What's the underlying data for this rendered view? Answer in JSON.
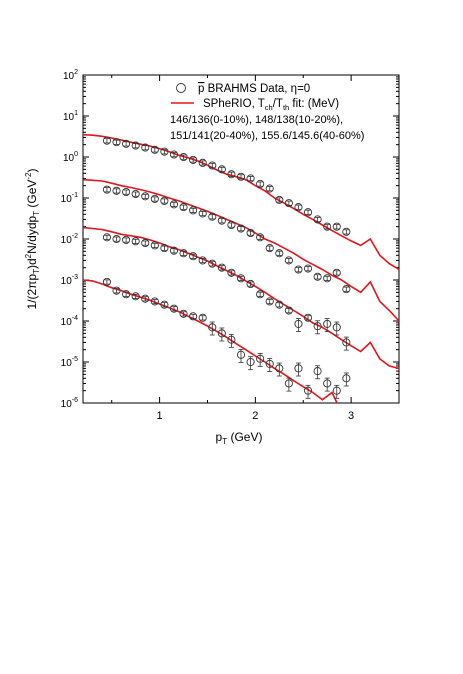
{
  "chart_data": {
    "type": "scatter",
    "title": "",
    "xlabel_main": "p",
    "xlabel_sub": "T",
    "xlabel_unit": " (GeV)",
    "ylabel": "1/(2πp_T)d²N/dydp_T (GeV⁻²)",
    "ylabel_parts": {
      "prefix": "1/(2πp",
      "sub1": "T",
      "mid": ")d",
      "sup1": "2",
      "mid2": "N/dydp",
      "sub2": "T",
      "unit": " (GeV",
      "sup2": "-2",
      "close": ")"
    },
    "xlim": [
      0.2,
      3.5
    ],
    "ylim_log10": [
      -6,
      2
    ],
    "yscale": "log",
    "xticks": [
      {
        "value": 1,
        "label": "1"
      },
      {
        "value": 2,
        "label": "2"
      },
      {
        "value": 3,
        "label": "3"
      }
    ],
    "yticks": [
      {
        "exp": 2,
        "base": "10",
        "sup": "2"
      },
      {
        "exp": 1,
        "base": "10",
        "sup": "1"
      },
      {
        "exp": 0,
        "base": "10",
        "sup": "0"
      },
      {
        "exp": -1,
        "base": "10",
        "sup": "-1"
      },
      {
        "exp": -2,
        "base": "10",
        "sup": "-2"
      },
      {
        "exp": -3,
        "base": "10",
        "sup": "-3"
      },
      {
        "exp": -4,
        "base": "10",
        "sup": "-4"
      },
      {
        "exp": -5,
        "base": "10",
        "sup": "-5"
      },
      {
        "exp": -6,
        "base": "10",
        "sup": "-6"
      }
    ],
    "legend": {
      "placement": "top-right",
      "data_label_bar": "p",
      "data_label_rest": " BRAHMS Data, η=0",
      "model_label_pre": "SPheRIO, T",
      "model_label_sub1": "ch",
      "model_label_mid": "/T",
      "model_label_sub2": "th",
      "model_label_post": " fit: (MeV)",
      "fit_line1": "146/136(0-10%), 148/138(10-20%),",
      "fit_line2": "151/141(20-40%), 155.6/145.6(40-60%)"
    },
    "colors": {
      "model": "#e8141c",
      "data": "#333333"
    },
    "series": [
      {
        "data_x": [
          0.45,
          0.55,
          0.65,
          0.75,
          0.85,
          0.95,
          1.05,
          1.15,
          1.25,
          1.35,
          1.45,
          1.55,
          1.65,
          1.75,
          1.85,
          1.95,
          2.05,
          2.15,
          2.25,
          2.35,
          2.45,
          2.55,
          2.65,
          2.75,
          2.85,
          2.95
        ],
        "data_y": [
          2.5,
          2.3,
          2.1,
          1.9,
          1.7,
          1.5,
          1.35,
          1.15,
          1.0,
          0.85,
          0.72,
          0.62,
          0.5,
          0.38,
          0.33,
          0.3,
          0.22,
          0.17,
          0.09,
          0.075,
          0.06,
          0.045,
          0.03,
          0.02,
          0.02,
          0.015
        ],
        "model_x": [
          0.2,
          0.3,
          0.4,
          0.5,
          0.6,
          0.7,
          0.8,
          0.9,
          1.0,
          1.1,
          1.2,
          1.3,
          1.4,
          1.5,
          1.6,
          1.7,
          1.8,
          1.9,
          2.0,
          2.1,
          2.2,
          2.3,
          2.4,
          2.5,
          2.6,
          2.7,
          2.8,
          2.9,
          3.0,
          3.1,
          3.2,
          3.3,
          3.4,
          3.5
        ],
        "model_y": [
          3.5,
          3.4,
          3.2,
          2.9,
          2.6,
          2.3,
          2.05,
          1.85,
          1.6,
          1.35,
          1.1,
          0.95,
          0.8,
          0.63,
          0.48,
          0.38,
          0.33,
          0.28,
          0.2,
          0.15,
          0.1,
          0.075,
          0.055,
          0.04,
          0.03,
          0.022,
          0.016,
          0.012,
          0.009,
          0.007,
          0.01,
          0.004,
          0.0025,
          0.0018
        ]
      },
      {
        "data_x": [
          0.45,
          0.55,
          0.65,
          0.75,
          0.85,
          0.95,
          1.05,
          1.15,
          1.25,
          1.35,
          1.45,
          1.55,
          1.65,
          1.75,
          1.85,
          1.95,
          2.05,
          2.15,
          2.25,
          2.35,
          2.45,
          2.55,
          2.65,
          2.75,
          2.85,
          2.95
        ],
        "data_y": [
          0.16,
          0.15,
          0.14,
          0.125,
          0.11,
          0.095,
          0.085,
          0.07,
          0.06,
          0.05,
          0.042,
          0.035,
          0.028,
          0.022,
          0.018,
          0.014,
          0.011,
          0.006,
          0.0045,
          0.003,
          0.0018,
          0.0019,
          0.0012,
          0.0011,
          0.0015,
          0.0006
        ],
        "model_x": [
          0.2,
          0.3,
          0.4,
          0.5,
          0.6,
          0.7,
          0.8,
          0.9,
          1.0,
          1.1,
          1.2,
          1.3,
          1.4,
          1.5,
          1.6,
          1.7,
          1.8,
          1.9,
          2.0,
          2.1,
          2.2,
          2.3,
          2.4,
          2.5,
          2.6,
          2.7,
          2.8,
          2.9,
          3.0,
          3.1,
          3.2,
          3.3,
          3.4,
          3.5
        ],
        "model_y": [
          0.28,
          0.27,
          0.26,
          0.23,
          0.2,
          0.18,
          0.16,
          0.14,
          0.12,
          0.1,
          0.085,
          0.07,
          0.058,
          0.047,
          0.038,
          0.03,
          0.024,
          0.019,
          0.014,
          0.01,
          0.008,
          0.006,
          0.0045,
          0.0032,
          0.0024,
          0.0018,
          0.0013,
          0.001,
          0.0007,
          0.0005,
          0.0009,
          0.0003,
          0.00018,
          0.0001
        ]
      },
      {
        "data_x": [
          0.45,
          0.55,
          0.65,
          0.75,
          0.85,
          0.95,
          1.05,
          1.15,
          1.25,
          1.35,
          1.45,
          1.55,
          1.65,
          1.75,
          1.85,
          1.95,
          2.05,
          2.15,
          2.25,
          2.35,
          2.45,
          2.55,
          2.65,
          2.75,
          2.85,
          2.95
        ],
        "data_y": [
          0.011,
          0.01,
          0.0095,
          0.0088,
          0.008,
          0.007,
          0.006,
          0.0052,
          0.0045,
          0.0038,
          0.003,
          0.0025,
          0.002,
          0.0015,
          0.0011,
          0.0008,
          0.00045,
          0.0003,
          0.00025,
          0.00018,
          8.5e-05,
          0.00012,
          7.5e-05,
          8.5e-05,
          7e-05,
          3e-05
        ],
        "model_x": [
          0.2,
          0.3,
          0.4,
          0.5,
          0.6,
          0.7,
          0.8,
          0.9,
          1.0,
          1.1,
          1.2,
          1.3,
          1.4,
          1.5,
          1.6,
          1.7,
          1.8,
          1.9,
          2.0,
          2.1,
          2.2,
          2.3,
          2.4,
          2.5,
          2.6,
          2.7,
          2.8,
          2.9,
          3.0,
          3.1,
          3.2,
          3.3,
          3.4,
          3.5
        ],
        "model_y": [
          0.019,
          0.018,
          0.017,
          0.015,
          0.013,
          0.012,
          0.011,
          0.0095,
          0.008,
          0.0065,
          0.0055,
          0.0045,
          0.0036,
          0.0029,
          0.0022,
          0.0017,
          0.0013,
          0.00095,
          0.0007,
          0.0005,
          0.00035,
          0.00025,
          0.00018,
          0.00013,
          9e-05,
          7e-05,
          5e-05,
          3.5e-05,
          2.5e-05,
          1.8e-05,
          3e-05,
          1.2e-05,
          8e-06,
          7e-06
        ]
      },
      {
        "data_x": [
          0.45,
          0.55,
          0.65,
          0.75,
          0.85,
          0.95,
          1.05,
          1.15,
          1.25,
          1.35,
          1.45,
          1.55,
          1.65,
          1.75,
          1.85,
          1.95,
          2.05,
          2.15,
          2.25,
          2.35,
          2.45,
          2.55,
          2.65,
          2.75,
          2.85,
          2.95
        ],
        "data_y": [
          0.0009,
          0.00055,
          0.00045,
          0.0004,
          0.00035,
          0.0003,
          0.00025,
          0.0002,
          0.00015,
          0.00013,
          0.00012,
          7e-05,
          5e-05,
          3.5e-05,
          1.5e-05,
          1e-05,
          1.2e-05,
          9e-06,
          7e-06,
          3e-06,
          7e-06,
          2e-06,
          6e-06,
          3e-06,
          2e-06,
          4e-06
        ],
        "model_x": [
          0.2,
          0.3,
          0.4,
          0.5,
          0.6,
          0.7,
          0.8,
          0.9,
          1.0,
          1.1,
          1.2,
          1.3,
          1.4,
          1.5,
          1.6,
          1.7,
          1.8,
          1.9,
          2.0,
          2.1,
          2.2,
          2.3,
          2.4,
          2.5,
          2.6,
          2.7,
          2.8,
          2.9
        ],
        "model_y": [
          0.001,
          0.00095,
          0.0008,
          0.00065,
          0.00055,
          0.00045,
          0.00038,
          0.00032,
          0.00026,
          0.00021,
          0.00017,
          0.00013,
          0.0001,
          7.5e-05,
          5.5e-05,
          4e-05,
          2.8e-05,
          2e-05,
          1.4e-05,
          1e-05,
          7e-06,
          5e-06,
          3.5e-06,
          2.5e-06,
          1.8e-06,
          1.2e-06,
          1.8e-06,
          6e-07
        ]
      }
    ]
  }
}
